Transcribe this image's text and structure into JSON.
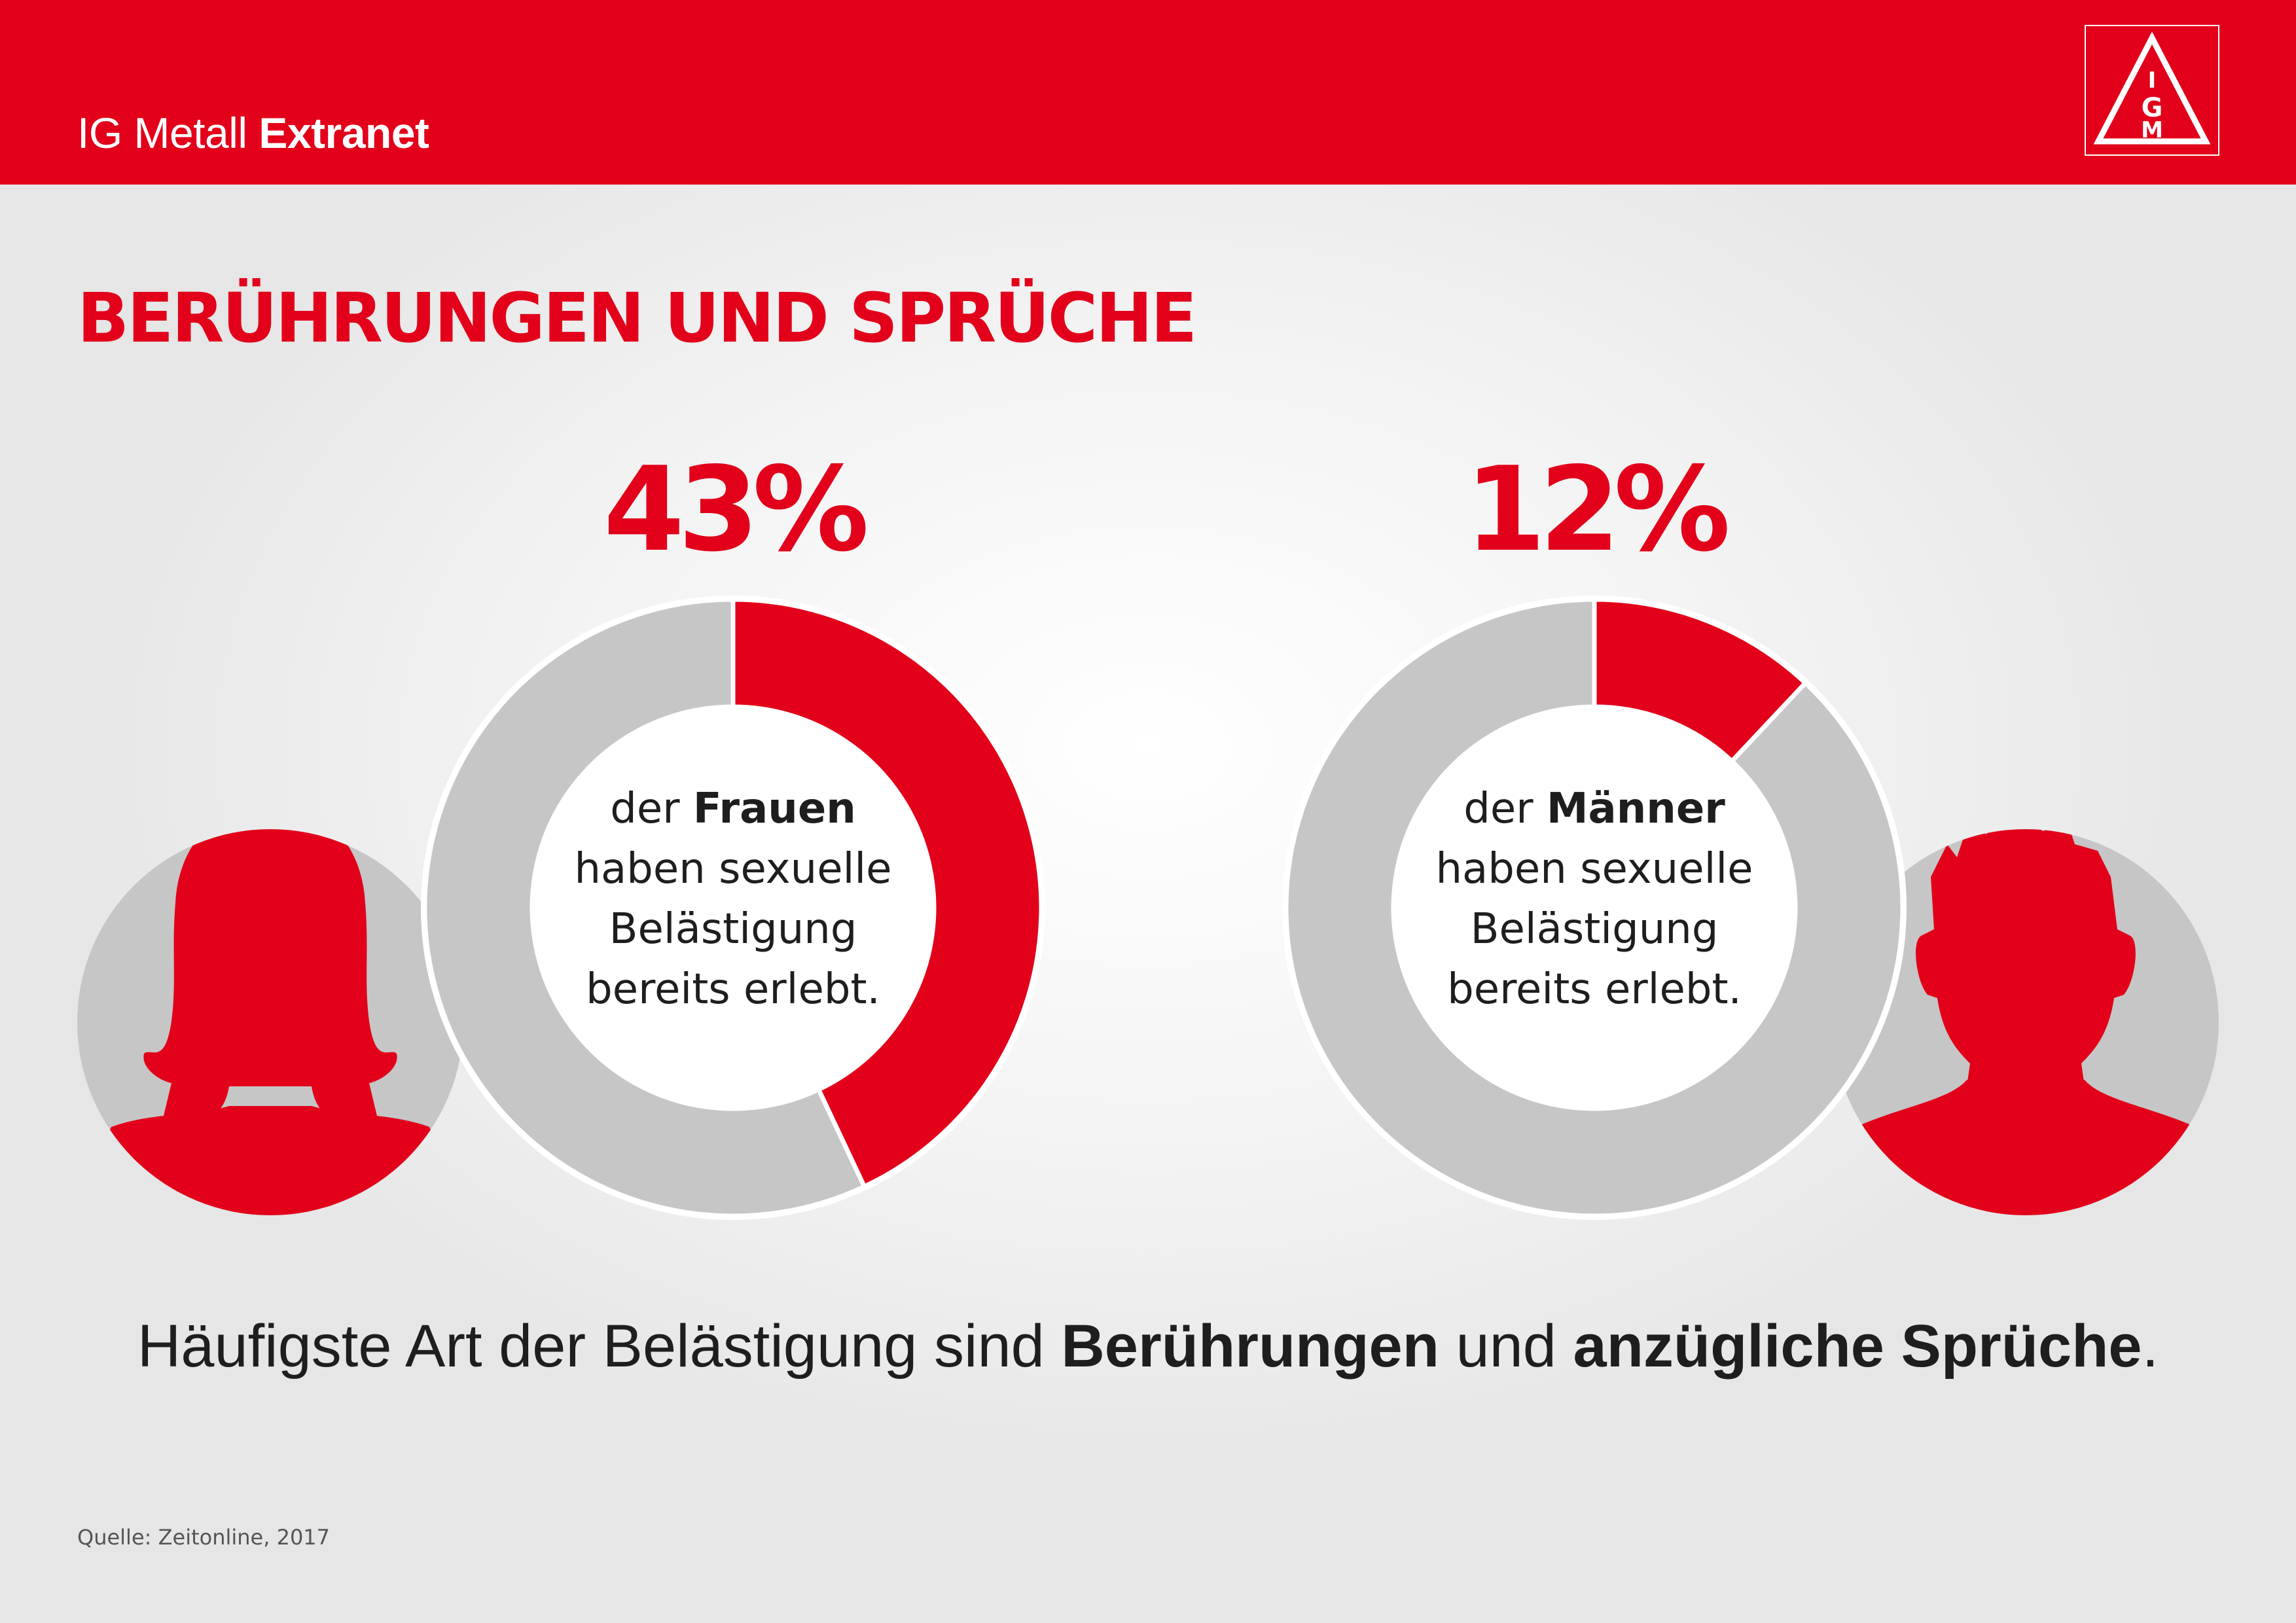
{
  "header": {
    "brand_regular": "IG Metall",
    "brand_bold": "Extranet",
    "logo_letters": "IGM"
  },
  "title": "BERÜHRUNGEN UND SPRÜCHE",
  "colors": {
    "accent": "#e2001a",
    "remainder": "#c6c6c6",
    "text": "#1e1e1e"
  },
  "chart_data": [
    {
      "type": "pie",
      "variant": "donut",
      "value_label": "43%",
      "values": [
        43,
        57
      ],
      "segments": [
        "",
        ""
      ],
      "center_text": {
        "pre": "der ",
        "bold": "Frauen",
        "lines": [
          "haben sexuelle",
          "Belästigung",
          "bereits erlebt."
        ]
      },
      "icon": "woman-silhouette-icon"
    },
    {
      "type": "pie",
      "variant": "donut",
      "value_label": "12%",
      "values": [
        12,
        88
      ],
      "segments": [
        "",
        ""
      ],
      "center_text": {
        "pre": "der ",
        "bold": "Männer",
        "lines": [
          "haben sexuelle",
          "Belästigung",
          "bereits erlebt."
        ]
      },
      "icon": "man-silhouette-icon"
    }
  ],
  "footer": {
    "summary_pre": "Häufigste Art der Belästigung sind ",
    "summary_bold1": "Berührungen",
    "summary_mid": " und ",
    "summary_bold2": "anzügliche Sprüche",
    "summary_post": ".",
    "source": "Quelle: Zeitonline, 2017"
  }
}
